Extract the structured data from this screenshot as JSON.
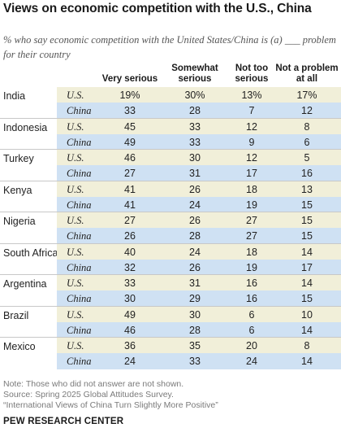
{
  "title": "Views on economic competition with the U.S., China",
  "subtitle": "% who say economic competition with the United States/China is (a) ___ problem for their country",
  "chart_data": {
    "type": "table",
    "columns": [
      "Very serious",
      "Somewhat serious",
      "Not too serious",
      "Not a problem at all"
    ],
    "rows": [
      {
        "country": "India",
        "us": [
          "19%",
          "30%",
          "13%",
          "17%"
        ],
        "china": [
          "33",
          "28",
          "7",
          "12"
        ]
      },
      {
        "country": "Indonesia",
        "us": [
          "45",
          "33",
          "12",
          "8"
        ],
        "china": [
          "49",
          "33",
          "9",
          "6"
        ]
      },
      {
        "country": "Turkey",
        "us": [
          "46",
          "30",
          "12",
          "5"
        ],
        "china": [
          "27",
          "31",
          "17",
          "16"
        ]
      },
      {
        "country": "Kenya",
        "us": [
          "41",
          "26",
          "18",
          "13"
        ],
        "china": [
          "41",
          "24",
          "19",
          "15"
        ]
      },
      {
        "country": "Nigeria",
        "us": [
          "27",
          "26",
          "27",
          "15"
        ],
        "china": [
          "26",
          "28",
          "27",
          "15"
        ]
      },
      {
        "country": "South Africa",
        "us": [
          "40",
          "24",
          "18",
          "14"
        ],
        "china": [
          "32",
          "26",
          "19",
          "17"
        ]
      },
      {
        "country": "Argentina",
        "us": [
          "33",
          "31",
          "16",
          "14"
        ],
        "china": [
          "30",
          "29",
          "16",
          "15"
        ]
      },
      {
        "country": "Brazil",
        "us": [
          "49",
          "30",
          "6",
          "10"
        ],
        "china": [
          "46",
          "28",
          "6",
          "14"
        ]
      },
      {
        "country": "Mexico",
        "us": [
          "36",
          "35",
          "20",
          "8"
        ],
        "china": [
          "24",
          "33",
          "24",
          "14"
        ]
      }
    ],
    "row_labels": {
      "us": "U.S.",
      "china": "China"
    }
  },
  "colors": {
    "us_row": "#f1efd9",
    "china_row": "#cfe1f3"
  },
  "notes": [
    "Note: Those who did not answer are not shown.",
    "Source: Spring 2025 Global Attitudes Survey.",
    "“International Views of China Turn Slightly More Positive”"
  ],
  "organization": "PEW RESEARCH CENTER"
}
